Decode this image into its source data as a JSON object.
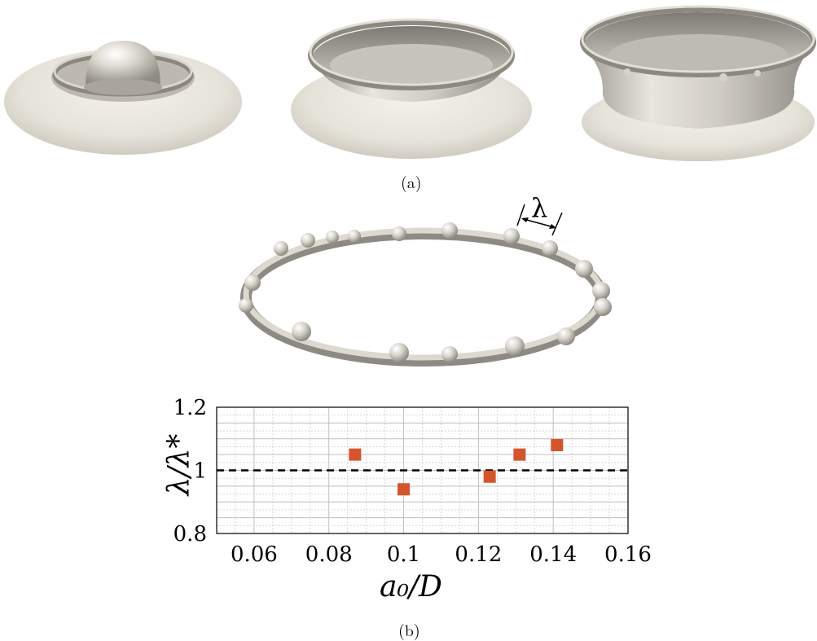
{
  "figure": {
    "caption_a": "(a)",
    "caption_b": "(b)",
    "lambda_label": "λ"
  },
  "chart_data": {
    "type": "scatter",
    "xlabel": "a₀/D",
    "ylabel": "λ/λ*",
    "xlim": [
      0.05,
      0.16
    ],
    "ylim": [
      0.8,
      1.2
    ],
    "xticks": [
      "0.06",
      "0.08",
      "0.1",
      "0.12",
      "0.14",
      "0.16"
    ],
    "xtick_values": [
      0.06,
      0.08,
      0.1,
      0.12,
      0.14,
      0.16
    ],
    "yticks": [
      "0.8",
      "1",
      "1.2"
    ],
    "ytick_values": [
      0.8,
      1.0,
      1.2
    ],
    "grid": true,
    "reference_line_y": 1.0,
    "series": [
      {
        "x": [
          0.087,
          0.1,
          0.123,
          0.131,
          0.141
        ],
        "y": [
          1.05,
          0.94,
          0.98,
          1.05,
          1.08
        ],
        "color": "#d4552b",
        "marker": "square"
      }
    ]
  }
}
